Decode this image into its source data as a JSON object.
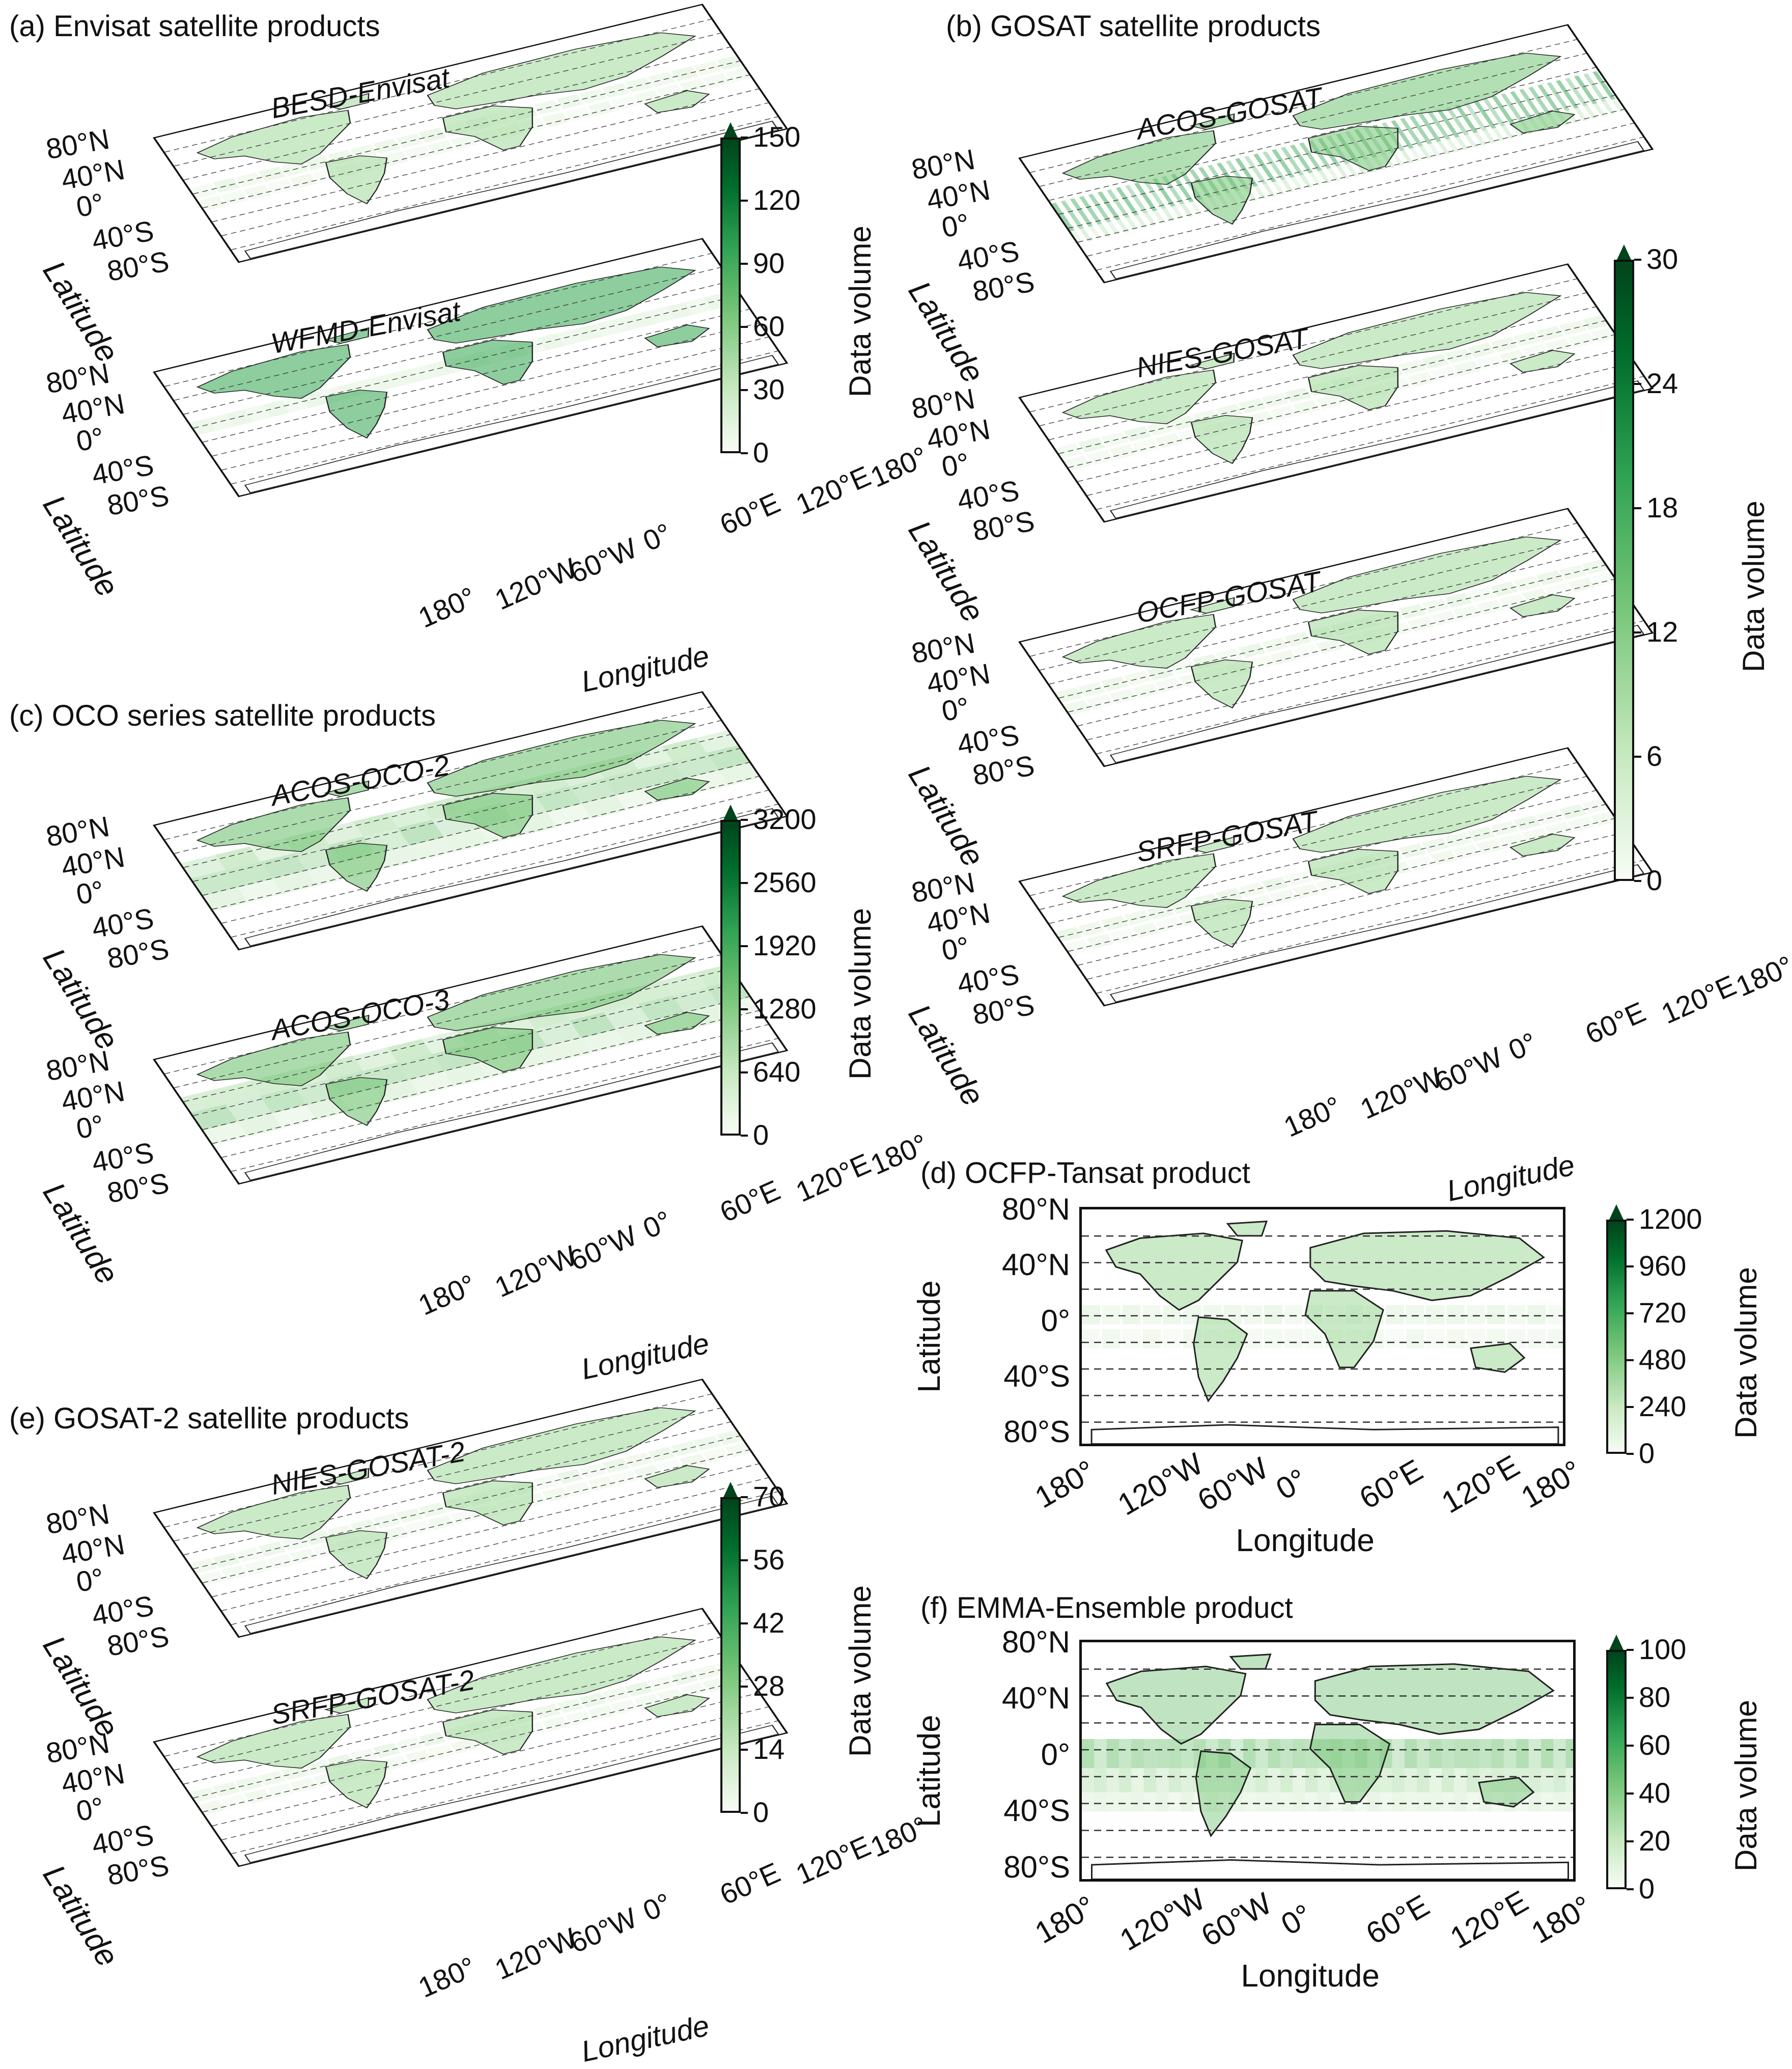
{
  "figure": {
    "panels": {
      "a": {
        "title": "(a) Envisat satellite products"
      },
      "b": {
        "title": "(b) GOSAT satellite products"
      },
      "c": {
        "title": "(c) OCO series satellite products"
      },
      "d": {
        "title": "(d) OCFP-Tansat product"
      },
      "e": {
        "title": "(e) GOSAT-2 satellite products"
      },
      "f": {
        "title": "(f) EMMA-Ensemble product"
      }
    },
    "axes": {
      "xlabel": "Longitude",
      "ylabel": "Latitude",
      "xticks": [
        "180°",
        "120°W",
        "60°W",
        "0°",
        "60°E",
        "120°E",
        "180°"
      ],
      "yticks": [
        "80°N",
        "40°N",
        "0°",
        "40°S",
        "80°S"
      ]
    },
    "colorbar_label": "Data volume",
    "colormap": [
      "#f7fcf5",
      "#c7e9c0",
      "#74c476",
      "#31a354",
      "#006d2c",
      "#00441b"
    ]
  },
  "chart_data": [
    {
      "type": "heatmap",
      "panel": "a",
      "title": "BESD-Envisat",
      "xlabel": "",
      "ylabel": "Latitude",
      "colorbar_label": "Data volume",
      "colorbar_ticks": [
        "0",
        "30",
        "60",
        "90",
        "120",
        "150"
      ],
      "vmin": 0,
      "vmax": 150
    },
    {
      "type": "heatmap",
      "panel": "a",
      "title": "WFMD-Envisat",
      "xlabel": "Longitude",
      "ylabel": "Latitude",
      "colorbar_label": "Data volume",
      "colorbar_ticks": [
        "0",
        "30",
        "60",
        "90",
        "120",
        "150"
      ],
      "vmin": 0,
      "vmax": 150
    },
    {
      "type": "heatmap",
      "panel": "b",
      "title": "ACOS-GOSAT",
      "xlabel": "",
      "ylabel": "Latitude",
      "colorbar_label": "Data volume",
      "colorbar_ticks": [
        "0",
        "6",
        "12",
        "18",
        "24",
        "30"
      ],
      "vmin": 0,
      "vmax": 30
    },
    {
      "type": "heatmap",
      "panel": "b",
      "title": "NIES-GOSAT",
      "xlabel": "",
      "ylabel": "Latitude",
      "colorbar_label": "Data volume",
      "colorbar_ticks": [
        "0",
        "6",
        "12",
        "18",
        "24",
        "30"
      ],
      "vmin": 0,
      "vmax": 30
    },
    {
      "type": "heatmap",
      "panel": "b",
      "title": "OCFP-GOSAT",
      "xlabel": "",
      "ylabel": "Latitude",
      "colorbar_label": "Data volume",
      "colorbar_ticks": [
        "0",
        "6",
        "12",
        "18",
        "24",
        "30"
      ],
      "vmin": 0,
      "vmax": 30
    },
    {
      "type": "heatmap",
      "panel": "b",
      "title": "SRFP-GOSAT",
      "xlabel": "Longitude",
      "ylabel": "Latitude",
      "colorbar_label": "Data volume",
      "colorbar_ticks": [
        "0",
        "6",
        "12",
        "18",
        "24",
        "30"
      ],
      "vmin": 0,
      "vmax": 30
    },
    {
      "type": "heatmap",
      "panel": "c",
      "title": "ACOS-OCO-2",
      "xlabel": "",
      "ylabel": "Latitude",
      "colorbar_label": "Data volume",
      "colorbar_ticks": [
        "0",
        "640",
        "1280",
        "1920",
        "2560",
        "3200"
      ],
      "vmin": 0,
      "vmax": 3200
    },
    {
      "type": "heatmap",
      "panel": "c",
      "title": "ACOS-OCO-3",
      "xlabel": "Longitude",
      "ylabel": "Latitude",
      "colorbar_label": "Data volume",
      "colorbar_ticks": [
        "0",
        "640",
        "1280",
        "1920",
        "2560",
        "3200"
      ],
      "vmin": 0,
      "vmax": 3200
    },
    {
      "type": "heatmap",
      "panel": "d",
      "title": "",
      "xlabel": "Longitude",
      "ylabel": "Latitude",
      "colorbar_label": "Data volume",
      "colorbar_ticks": [
        "0",
        "240",
        "480",
        "720",
        "960",
        "1200"
      ],
      "vmin": 0,
      "vmax": 1200
    },
    {
      "type": "heatmap",
      "panel": "e",
      "title": "NIES-GOSAT-2",
      "xlabel": "",
      "ylabel": "Latitude",
      "colorbar_label": "Data volume",
      "colorbar_ticks": [
        "0",
        "14",
        "28",
        "42",
        "56",
        "70"
      ],
      "vmin": 0,
      "vmax": 70
    },
    {
      "type": "heatmap",
      "panel": "e",
      "title": "SRFP-GOSAT-2",
      "xlabel": "Longitude",
      "ylabel": "Latitude",
      "colorbar_label": "Data volume",
      "colorbar_ticks": [
        "0",
        "14",
        "28",
        "42",
        "56",
        "70"
      ],
      "vmin": 0,
      "vmax": 70
    },
    {
      "type": "heatmap",
      "panel": "f",
      "title": "",
      "xlabel": "Longitude",
      "ylabel": "Latitude",
      "colorbar_label": "Data volume",
      "colorbar_ticks": [
        "0",
        "20",
        "40",
        "60",
        "80",
        "100"
      ],
      "vmin": 0,
      "vmax": 100
    }
  ]
}
